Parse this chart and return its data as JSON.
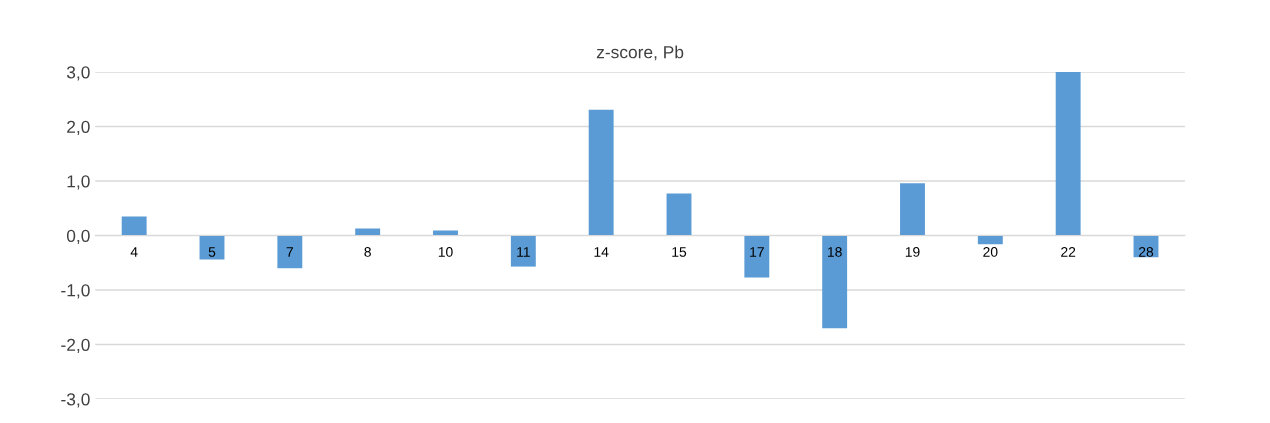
{
  "chart_data": {
    "type": "bar",
    "title": "z-score, Pb",
    "categories": [
      "4",
      "5",
      "7",
      "8",
      "10",
      "11",
      "14",
      "15",
      "17",
      "18",
      "19",
      "20",
      "22",
      "28"
    ],
    "values": [
      0.35,
      -0.44,
      -0.6,
      0.13,
      0.09,
      -0.57,
      2.31,
      0.77,
      -0.77,
      -1.7,
      0.96,
      -0.16,
      3.0,
      -0.4
    ],
    "color": "#5b9bd5",
    "ylim": [
      -3,
      3
    ],
    "yticks": [
      {
        "value": -3,
        "label": "-3,0"
      },
      {
        "value": -2,
        "label": "-2,0"
      },
      {
        "value": -1,
        "label": "-1,0"
      },
      {
        "value": 0,
        "label": "0,0"
      },
      {
        "value": 1,
        "label": "1,0"
      },
      {
        "value": 2,
        "label": "2,0"
      },
      {
        "value": 3,
        "label": "3,0"
      }
    ],
    "grid": "y"
  }
}
